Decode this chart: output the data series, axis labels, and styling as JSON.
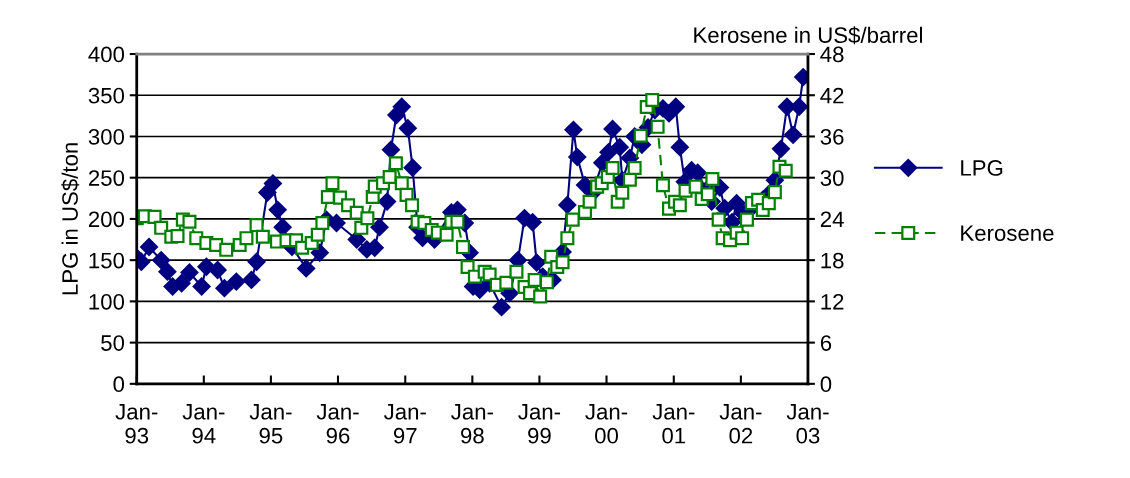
{
  "chart_data": {
    "type": "line",
    "ylabel": "LPG in US$/ton",
    "y2label": "Kerosene in US$/barrel",
    "xlim": [
      "1993-01",
      "2003-01"
    ],
    "xticks": [
      {
        "value": "1993-01",
        "label": "Jan-\n93"
      },
      {
        "value": "1994-01",
        "label": "Jan-\n94"
      },
      {
        "value": "1995-01",
        "label": "Jan-\n95"
      },
      {
        "value": "1996-01",
        "label": "Jan-\n96"
      },
      {
        "value": "1997-01",
        "label": "Jan-\n97"
      },
      {
        "value": "1998-01",
        "label": "Jan-\n98"
      },
      {
        "value": "1999-01",
        "label": "Jan-\n99"
      },
      {
        "value": "2000-01",
        "label": "Jan-\n00"
      },
      {
        "value": "2001-01",
        "label": "Jan-\n01"
      },
      {
        "value": "2002-01",
        "label": "Jan-\n02"
      },
      {
        "value": "2003-01",
        "label": "Jan-\n03"
      }
    ],
    "ylim": [
      0,
      400
    ],
    "yticks": [
      0,
      50,
      100,
      150,
      200,
      250,
      300,
      350,
      400
    ],
    "y2lim": [
      0,
      48
    ],
    "y2ticks": [
      0,
      6,
      12,
      18,
      24,
      30,
      36,
      42,
      48
    ],
    "grid": "y",
    "legend": "right",
    "series": [
      {
        "name": "LPG",
        "color": "#000080",
        "marker": "diamond",
        "line_style": "solid",
        "x": [
          "1993-01-01",
          "1993-01-26",
          "1993-03-09",
          "1993-05-14",
          "1993-06-17",
          "1993-07-15",
          "1993-09-02",
          "1993-10-15",
          "1993-12-20",
          "1994-01-15",
          "1994-03-17",
          "1994-04-23",
          "1994-06-27",
          "1994-09-17",
          "1994-10-15",
          "1994-12-13",
          "1995-01-12",
          "1995-02-07",
          "1995-03-06",
          "1995-04-26",
          "1995-07-12",
          "1995-09-24",
          "1995-10-30",
          "1995-12-24",
          "1996-04-12",
          "1996-06-06",
          "1996-07-19",
          "1996-08-14",
          "1996-09-24",
          "1996-10-15",
          "1996-11-14",
          "1996-12-13",
          "1997-01-15",
          "1997-02-10",
          "1997-03-09",
          "1997-04-05",
          "1997-06-09",
          "1997-09-09",
          "1997-10-12",
          "1997-11-21",
          "1997-12-17",
          "1998-01-05",
          "1998-02-10",
          "1998-04-05",
          "1998-06-09",
          "1998-07-23",
          "1998-09-06",
          "1998-10-12",
          "1998-11-25",
          "1998-12-17",
          "1999-01-19",
          "1999-03-13",
          "1999-05-07",
          "1999-06-02",
          "1999-07-05",
          "1999-07-26",
          "1999-09-06",
          "1999-10-19",
          "1999-12-09",
          "2000-01-12",
          "2000-02-03",
          "2000-03-13",
          "2000-03-27",
          "2000-05-07",
          "2000-06-02",
          "2000-07-12",
          "2000-08-14",
          "2000-09-20",
          "2000-11-03",
          "2000-12-06",
          "2001-01-12",
          "2001-02-03",
          "2001-03-02",
          "2001-04-08",
          "2001-05-11",
          "2001-06-27",
          "2001-07-26",
          "2001-09-09",
          "2001-10-05",
          "2001-11-14",
          "2001-12-09",
          "2002-01-12",
          "2002-03-06",
          "2002-04-30",
          "2002-06-06",
          "2002-07-05",
          "2002-08-07",
          "2002-09-09",
          "2002-10-12",
          "2002-11-14",
          "2002-12-06"
        ],
        "values": [
          153,
          148,
          166,
          150,
          136,
          118,
          122,
          135,
          118,
          142,
          138,
          116,
          124,
          126,
          148,
          232,
          243,
          211,
          190,
          166,
          140,
          159,
          199,
          195,
          175,
          163,
          165,
          190,
          221,
          284,
          326,
          336,
          310,
          262,
          190,
          177,
          175,
          208,
          211,
          195,
          159,
          118,
          114,
          122,
          93,
          110,
          150,
          201,
          196,
          147,
          130,
          126,
          160,
          217,
          308,
          275,
          241,
          232,
          268,
          281,
          309,
          287,
          247,
          274,
          300,
          290,
          311,
          332,
          334,
          328,
          336,
          287,
          245,
          259,
          256,
          235,
          221,
          238,
          213,
          196,
          219,
          207,
          215,
          223,
          231,
          247,
          285,
          336,
          302,
          336,
          372
        ]
      },
      {
        "name": "Kerosene",
        "color": "#008000",
        "marker": "square",
        "line_style": "dashed",
        "axis": "y2",
        "x": [
          "1993-01-01",
          "1993-02-14",
          "1993-04-08",
          "1993-05-14",
          "1993-07-08",
          "1993-08-11",
          "1993-09-09",
          "1993-10-15",
          "1993-11-21",
          "1994-01-15",
          "1994-03-09",
          "1994-05-03",
          "1994-07-15",
          "1994-08-21",
          "1994-10-15",
          "1994-11-18",
          "1995-02-03",
          "1995-03-27",
          "1995-05-18",
          "1995-06-20",
          "1995-08-11",
          "1995-09-13",
          "1995-10-08",
          "1995-11-07",
          "1995-12-02",
          "1996-01-12",
          "1996-02-25",
          "1996-04-12",
          "1996-05-07",
          "1996-06-09",
          "1996-07-08",
          "1996-07-19",
          "1996-09-02",
          "1996-10-08",
          "1996-11-11",
          "1996-12-13",
          "1997-01-08",
          "1997-02-07",
          "1997-03-09",
          "1997-04-15",
          "1997-05-25",
          "1997-06-27",
          "1997-08-14",
          "1997-09-09",
          "1997-10-12",
          "1997-11-11",
          "1997-12-06",
          "1998-01-15",
          "1998-03-09",
          "1998-04-05",
          "1998-05-14",
          "1998-07-05",
          "1998-08-29",
          "1998-10-12",
          "1998-11-11",
          "1998-12-06",
          "1999-01-05",
          "1999-02-10",
          "1999-03-06",
          "1999-04-08",
          "1999-05-07",
          "1999-06-02",
          "1999-07-01",
          "1999-09-06",
          "1999-10-01",
          "1999-11-11",
          "1999-12-06",
          "2000-01-08",
          "2000-02-03",
          "2000-03-02",
          "2000-03-27",
          "2000-05-07",
          "2000-06-02",
          "2000-07-05",
          "2000-08-07",
          "2000-09-06",
          "2000-10-05",
          "2000-11-03",
          "2000-12-06",
          "2001-01-08",
          "2001-02-03",
          "2001-03-06",
          "2001-04-30",
          "2001-06-02",
          "2001-07-05",
          "2001-07-30",
          "2001-09-02",
          "2001-09-24",
          "2001-11-03",
          "2001-12-09",
          "2002-01-08",
          "2002-02-03",
          "2002-03-02",
          "2002-04-05",
          "2002-04-30",
          "2002-06-02",
          "2002-07-05",
          "2002-07-30",
          "2002-09-02"
        ],
        "values": [
          24.1,
          24.4,
          24.3,
          22.7,
          21.4,
          21.5,
          23.9,
          23.6,
          21.2,
          20.5,
          20.2,
          19.5,
          20.2,
          21.2,
          23.1,
          21.4,
          20.7,
          20.9,
          20.9,
          19.8,
          20.5,
          21.7,
          23.4,
          27.2,
          29.2,
          27.1,
          26.0,
          24.9,
          22.7,
          24.1,
          27.2,
          28.7,
          29.2,
          30.1,
          32.1,
          29.2,
          27.5,
          26.0,
          23.6,
          23.4,
          22.4,
          22.0,
          21.7,
          23.6,
          23.6,
          19.9,
          17.0,
          15.6,
          16.3,
          15.9,
          14.4,
          14.7,
          16.3,
          14.1,
          13.2,
          15.1,
          12.7,
          14.8,
          18.5,
          17.0,
          17.7,
          21.2,
          23.9,
          25.0,
          26.5,
          28.7,
          29.2,
          30.1,
          31.4,
          26.5,
          27.8,
          29.7,
          31.4,
          36.1,
          40.3,
          41.3,
          37.4,
          28.9,
          25.5,
          26.5,
          26.0,
          28.1,
          28.7,
          26.9,
          27.6,
          29.8,
          23.9,
          21.2,
          20.9,
          22.0,
          21.2,
          23.9,
          26.3,
          26.8,
          25.3,
          26.3,
          27.9,
          31.6,
          31.0
        ]
      }
    ]
  }
}
